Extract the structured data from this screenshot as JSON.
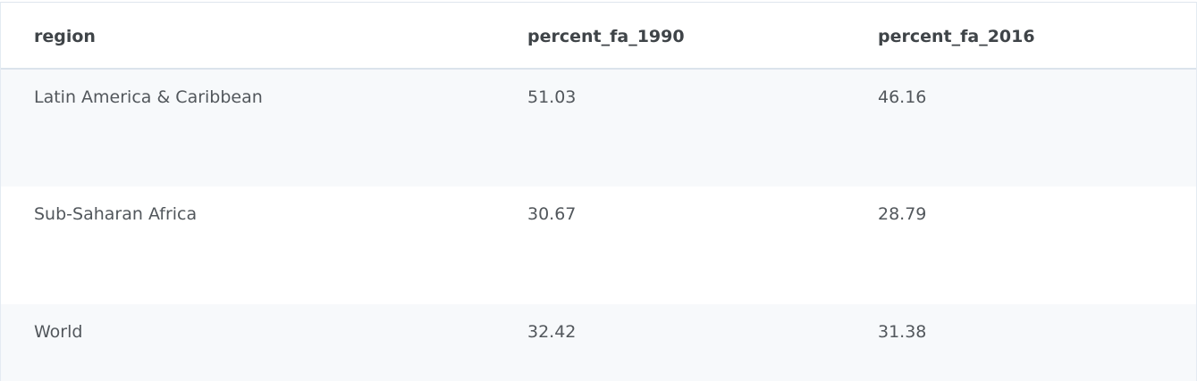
{
  "table": {
    "columns": [
      "region",
      "percent_fa_1990",
      "percent_fa_2016"
    ],
    "rows": [
      [
        "Latin America & Caribbean",
        "51.03",
        "46.16"
      ],
      [
        "Sub-Saharan Africa",
        "30.67",
        "28.79"
      ],
      [
        "World",
        "32.42",
        "31.38"
      ]
    ]
  }
}
